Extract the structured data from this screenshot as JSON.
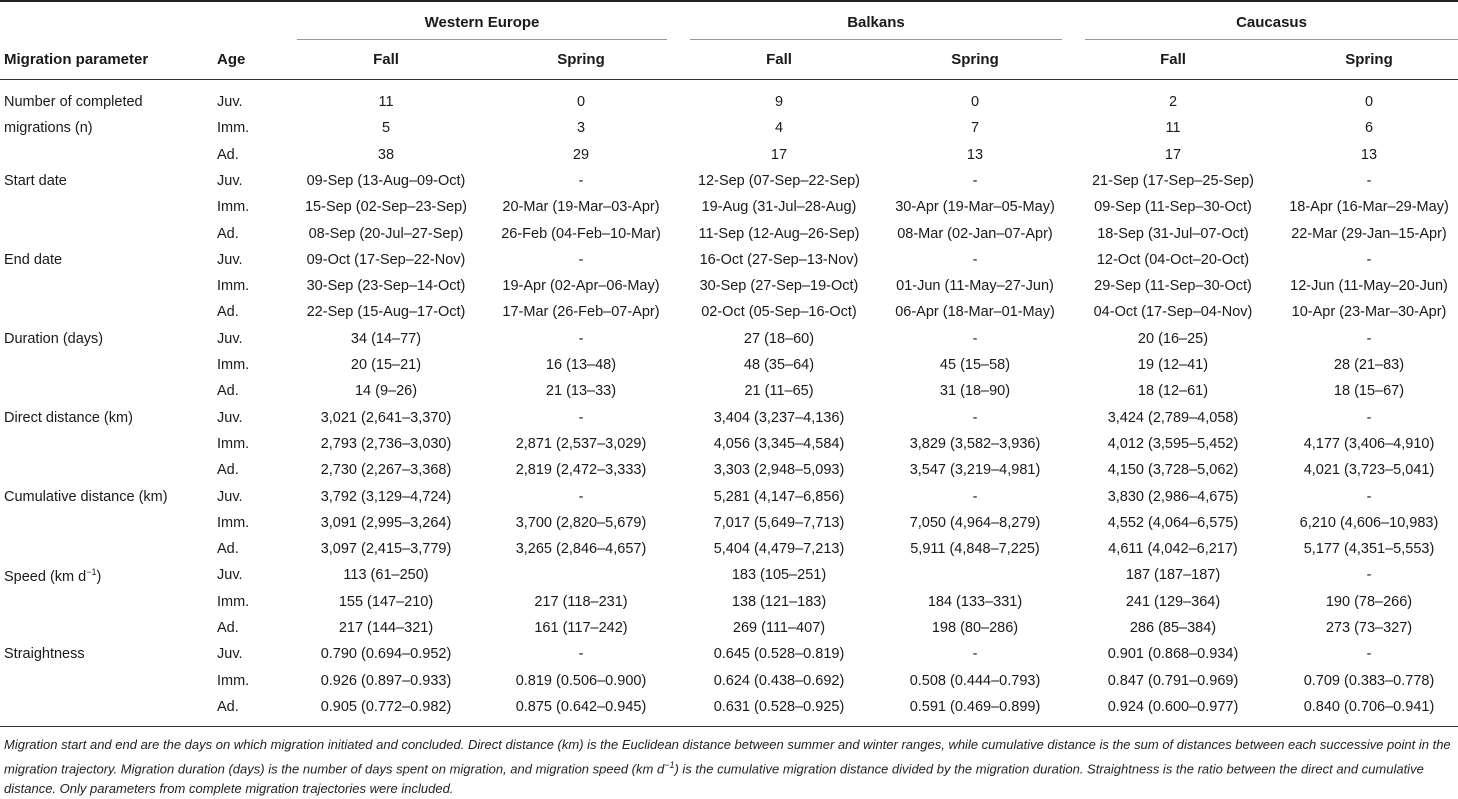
{
  "regions": [
    "Western Europe",
    "Balkans",
    "Caucasus"
  ],
  "header": {
    "param": "Migration parameter",
    "age": "Age",
    "seasons": [
      "Fall",
      "Spring",
      "Fall",
      "Spring",
      "Fall",
      "Spring"
    ]
  },
  "rows": [
    {
      "param": "Number of completed",
      "age": "Juv.",
      "values": [
        "11",
        "0",
        "9",
        "0",
        "2",
        "0"
      ]
    },
    {
      "param": "migrations (n)",
      "age": "Imm.",
      "values": [
        "5",
        "3",
        "4",
        "7",
        "11",
        "6"
      ]
    },
    {
      "param": "",
      "age": "Ad.",
      "values": [
        "38",
        "29",
        "17",
        "13",
        "17",
        "13"
      ]
    },
    {
      "param": "Start date",
      "age": "Juv.",
      "values": [
        "09-Sep (13-Aug–09-Oct)",
        "-",
        "12-Sep (07-Sep–22-Sep)",
        "-",
        "21-Sep (17-Sep–25-Sep)",
        "-"
      ]
    },
    {
      "param": "",
      "age": "Imm.",
      "values": [
        "15-Sep (02-Sep–23-Sep)",
        "20-Mar (19-Mar–03-Apr)",
        "19-Aug (31-Jul–28-Aug)",
        "30-Apr (19-Mar–05-May)",
        "09-Sep (11-Sep–30-Oct)",
        "18-Apr (16-Mar–29-May)"
      ]
    },
    {
      "param": "",
      "age": "Ad.",
      "values": [
        "08-Sep (20-Jul–27-Sep)",
        "26-Feb (04-Feb–10-Mar)",
        "11-Sep (12-Aug–26-Sep)",
        "08-Mar (02-Jan–07-Apr)",
        "18-Sep (31-Jul–07-Oct)",
        "22-Mar (29-Jan–15-Apr)"
      ]
    },
    {
      "param": "End date",
      "age": "Juv.",
      "values": [
        "09-Oct (17-Sep–22-Nov)",
        "-",
        "16-Oct (27-Sep–13-Nov)",
        "-",
        "12-Oct (04-Oct–20-Oct)",
        "-"
      ]
    },
    {
      "param": "",
      "age": "Imm.",
      "values": [
        "30-Sep (23-Sep–14-Oct)",
        "19-Apr (02-Apr–06-May)",
        "30-Sep (27-Sep–19-Oct)",
        "01-Jun (11-May–27-Jun)",
        "29-Sep (11-Sep–30-Oct)",
        "12-Jun (11-May–20-Jun)"
      ]
    },
    {
      "param": "",
      "age": "Ad.",
      "values": [
        "22-Sep (15-Aug–17-Oct)",
        "17-Mar (26-Feb–07-Apr)",
        "02-Oct (05-Sep–16-Oct)",
        "06-Apr (18-Mar–01-May)",
        "04-Oct (17-Sep–04-Nov)",
        "10-Apr (23-Mar–30-Apr)"
      ]
    },
    {
      "param": "Duration (days)",
      "age": "Juv.",
      "values": [
        "34 (14–77)",
        "-",
        "27 (18–60)",
        "-",
        "20 (16–25)",
        "-"
      ]
    },
    {
      "param": "",
      "age": "Imm.",
      "values": [
        "20 (15–21)",
        "16 (13–48)",
        "48 (35–64)",
        "45 (15–58)",
        "19 (12–41)",
        "28 (21–83)"
      ]
    },
    {
      "param": "",
      "age": "Ad.",
      "values": [
        "14 (9–26)",
        "21 (13–33)",
        "21 (11–65)",
        "31 (18–90)",
        "18 (12–61)",
        "18 (15–67)"
      ]
    },
    {
      "param": "Direct distance (km)",
      "age": "Juv.",
      "values": [
        "3,021 (2,641–3,370)",
        "-",
        "3,404 (3,237–4,136)",
        "-",
        "3,424 (2,789–4,058)",
        "-"
      ]
    },
    {
      "param": "",
      "age": "Imm.",
      "values": [
        "2,793 (2,736–3,030)",
        "2,871 (2,537–3,029)",
        "4,056 (3,345–4,584)",
        "3,829 (3,582–3,936)",
        "4,012 (3,595–5,452)",
        "4,177 (3,406–4,910)"
      ]
    },
    {
      "param": "",
      "age": "Ad.",
      "values": [
        "2,730 (2,267–3,368)",
        "2,819 (2,472–3,333)",
        "3,303 (2,948–5,093)",
        "3,547 (3,219–4,981)",
        "4,150 (3,728–5,062)",
        "4,021 (3,723–5,041)"
      ]
    },
    {
      "param": "Cumulative distance (km)",
      "age": "Juv.",
      "values": [
        "3,792 (3,129–4,724)",
        "-",
        "5,281 (4,147–6,856)",
        "-",
        "3,830 (2,986–4,675)",
        "-"
      ]
    },
    {
      "param": "",
      "age": "Imm.",
      "values": [
        "3,091 (2,995–3,264)",
        "3,700 (2,820–5,679)",
        "7,017 (5,649–7,713)",
        "7,050 (4,964–8,279)",
        "4,552 (4,064–6,575)",
        "6,210 (4,606–10,983)"
      ]
    },
    {
      "param": "",
      "age": "Ad.",
      "values": [
        "3,097 (2,415–3,779)",
        "3,265 (2,846–4,657)",
        "5,404 (4,479–7,213)",
        "5,911 (4,848–7,225)",
        "4,611 (4,042–6,217)",
        "5,177 (4,351–5,553)"
      ]
    },
    {
      "param": "Speed (km d",
      "param_sup": "−1",
      "param_after": ")",
      "age": "Juv.",
      "values": [
        "113 (61–250)",
        "",
        "183 (105–251)",
        "",
        "187 (187–187)",
        "-"
      ]
    },
    {
      "param": "",
      "age": "Imm.",
      "values": [
        "155 (147–210)",
        "217 (118–231)",
        "138 (121–183)",
        "184 (133–331)",
        "241 (129–364)",
        "190 (78–266)"
      ]
    },
    {
      "param": "",
      "age": "Ad.",
      "values": [
        "217 (144–321)",
        "161 (117–242)",
        "269 (111–407)",
        "198 (80–286)",
        "286 (85–384)",
        "273 (73–327)"
      ]
    },
    {
      "param": "Straightness",
      "age": "Juv.",
      "values": [
        "0.790 (0.694–0.952)",
        "-",
        "0.645 (0.528–0.819)",
        "-",
        "0.901 (0.868–0.934)",
        "-"
      ]
    },
    {
      "param": "",
      "age": "Imm.",
      "values": [
        "0.926 (0.897–0.933)",
        "0.819 (0.506–0.900)",
        "0.624 (0.438–0.692)",
        "0.508 (0.444–0.793)",
        "0.847 (0.791–0.969)",
        "0.709 (0.383–0.778)"
      ]
    },
    {
      "param": "",
      "age": "Ad.",
      "values": [
        "0.905 (0.772–0.982)",
        "0.875 (0.642–0.945)",
        "0.631 (0.528–0.925)",
        "0.591 (0.469–0.899)",
        "0.924 (0.600–0.977)",
        "0.840 (0.706–0.941)"
      ]
    }
  ],
  "footnote": {
    "part1": "Migration start and end are the days on which migration initiated and concluded. Direct distance (km) is the Euclidean distance between summer and winter ranges, while cumulative distance is the sum of distances between each successive point in the migration trajectory. Migration duration (days) is the number of days spent on migration, and migration speed (km d",
    "sup": "−1",
    "part2": ") is the cumulative migration distance divided by the migration duration. Straightness is the ratio between the direct and cumulative distance. Only parameters from complete migration trajectories were included."
  }
}
